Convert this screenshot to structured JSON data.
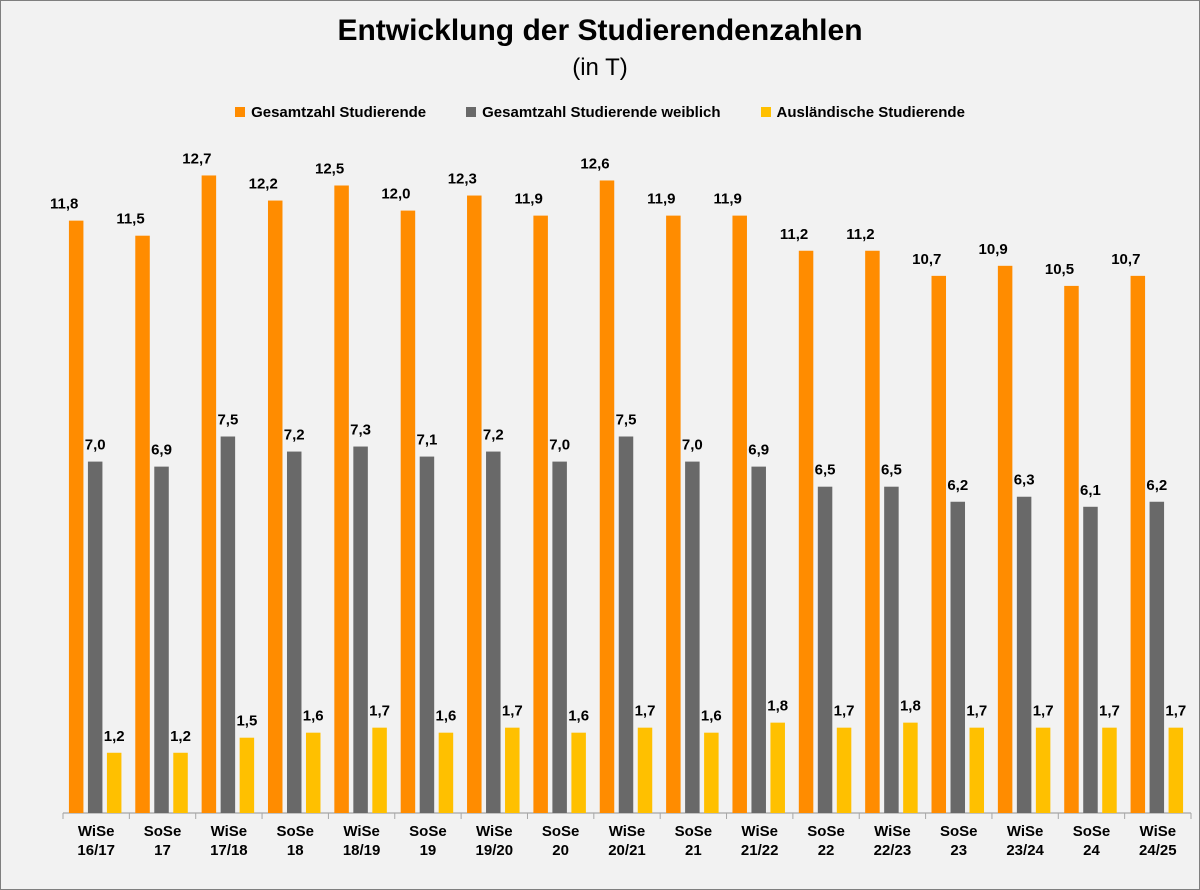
{
  "chart_data": {
    "type": "bar",
    "title": "Entwicklung der Studierendenzahlen",
    "subtitle": "(in T)",
    "legend_position": "top",
    "grid": false,
    "ylim": [
      0,
      13.5
    ],
    "categories": [
      [
        "WiSe",
        "16/17"
      ],
      [
        "SoSe",
        "17"
      ],
      [
        "WiSe",
        "17/18"
      ],
      [
        "SoSe",
        "18"
      ],
      [
        "WiSe",
        "18/19"
      ],
      [
        "SoSe",
        "19"
      ],
      [
        "WiSe",
        "19/20"
      ],
      [
        "SoSe",
        "20"
      ],
      [
        "WiSe",
        "20/21"
      ],
      [
        "SoSe",
        "21"
      ],
      [
        "WiSe",
        "21/22"
      ],
      [
        "SoSe",
        "22"
      ],
      [
        "WiSe",
        "22/23"
      ],
      [
        "SoSe",
        "23"
      ],
      [
        "WiSe",
        "23/24"
      ],
      [
        "SoSe",
        "24"
      ],
      [
        "WiSe",
        "24/25"
      ]
    ],
    "series": [
      {
        "name": "Gesamtzahl Studierende",
        "color": "#ff8c00",
        "values": [
          11.8,
          11.5,
          12.7,
          12.2,
          12.5,
          12.0,
          12.3,
          11.9,
          12.6,
          11.9,
          11.9,
          11.2,
          11.2,
          10.7,
          10.9,
          10.5,
          10.7
        ],
        "labels": [
          "11,8",
          "11,5",
          "12,7",
          "12,2",
          "12,5",
          "12,0",
          "12,3",
          "11,9",
          "12,6",
          "11,9",
          "11,9",
          "11,2",
          "11,2",
          "10,7",
          "10,9",
          "10,5",
          "10,7"
        ]
      },
      {
        "name": "Gesamtzahl Studierende weiblich",
        "color": "#696969",
        "values": [
          7.0,
          6.9,
          7.5,
          7.2,
          7.3,
          7.1,
          7.2,
          7.0,
          7.5,
          7.0,
          6.9,
          6.5,
          6.5,
          6.2,
          6.3,
          6.1,
          6.2
        ],
        "labels": [
          "7,0",
          "6,9",
          "7,5",
          "7,2",
          "7,3",
          "7,1",
          "7,2",
          "7,0",
          "7,5",
          "7,0",
          "6,9",
          "6,5",
          "6,5",
          "6,2",
          "6,3",
          "6,1",
          "6,2"
        ]
      },
      {
        "name": "Ausländische Studierende",
        "color": "#ffc000",
        "values": [
          1.2,
          1.2,
          1.5,
          1.6,
          1.7,
          1.6,
          1.7,
          1.6,
          1.7,
          1.6,
          1.8,
          1.7,
          1.8,
          1.7,
          1.7,
          1.7,
          1.7
        ],
        "labels": [
          "1,2",
          "1,2",
          "1,5",
          "1,6",
          "1,7",
          "1,6",
          "1,7",
          "1,6",
          "1,7",
          "1,6",
          "1,8",
          "1,7",
          "1,8",
          "1,7",
          "1,7",
          "1,7",
          "1,7"
        ]
      }
    ]
  }
}
